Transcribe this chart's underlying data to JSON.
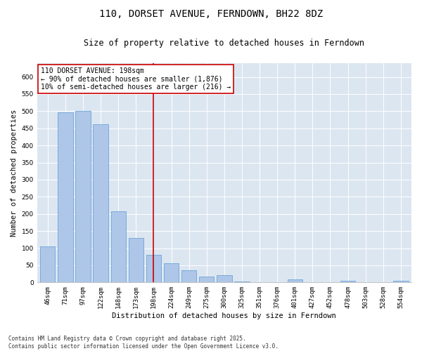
{
  "title": "110, DORSET AVENUE, FERNDOWN, BH22 8DZ",
  "subtitle": "Size of property relative to detached houses in Ferndown",
  "xlabel": "Distribution of detached houses by size in Ferndown",
  "ylabel": "Number of detached properties",
  "footnote": "Contains HM Land Registry data © Crown copyright and database right 2025.\nContains public sector information licensed under the Open Government Licence v3.0.",
  "categories": [
    "46sqm",
    "71sqm",
    "97sqm",
    "122sqm",
    "148sqm",
    "173sqm",
    "198sqm",
    "224sqm",
    "249sqm",
    "275sqm",
    "300sqm",
    "325sqm",
    "351sqm",
    "376sqm",
    "401sqm",
    "427sqm",
    "452sqm",
    "478sqm",
    "503sqm",
    "528sqm",
    "554sqm"
  ],
  "values": [
    105,
    497,
    500,
    462,
    207,
    130,
    80,
    55,
    35,
    18,
    22,
    2,
    0,
    0,
    8,
    0,
    0,
    5,
    0,
    0,
    5
  ],
  "bar_color": "#aec6e8",
  "bar_edge_color": "#5b9bd5",
  "vline_x_index": 6,
  "vline_color": "#cc0000",
  "annotation_text": "110 DORSET AVENUE: 198sqm\n← 90% of detached houses are smaller (1,876)\n10% of semi-detached houses are larger (216) →",
  "annotation_box_color": "#ffffff",
  "annotation_box_edgecolor": "#cc0000",
  "ylim": [
    0,
    640
  ],
  "yticks": [
    0,
    50,
    100,
    150,
    200,
    250,
    300,
    350,
    400,
    450,
    500,
    550,
    600
  ],
  "background_color": "#dce6f1",
  "title_fontsize": 10,
  "subtitle_fontsize": 8.5,
  "annotation_fontsize": 7,
  "axis_fontsize": 7.5,
  "tick_fontsize": 6.5,
  "footnote_fontsize": 5.5
}
